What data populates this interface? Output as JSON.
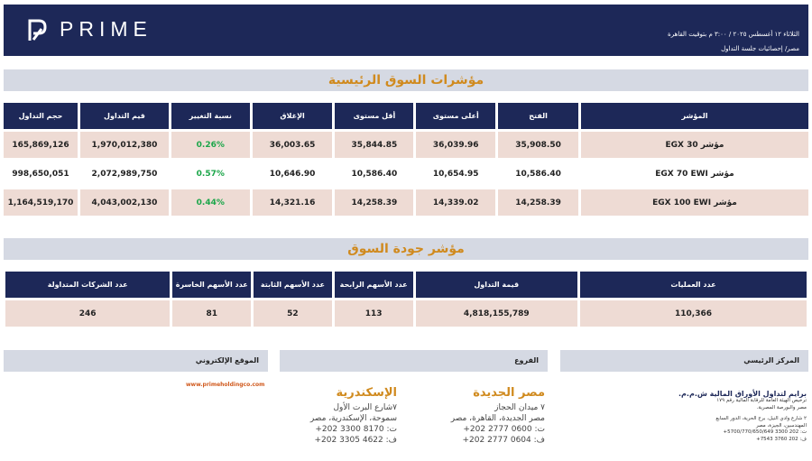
{
  "header": {
    "brand": "PRIME",
    "date_line": "الثلاثاء ١٢ أغسطس ٢٠٢٥ / ٣:٠٠ م بتوقيت القاهرة",
    "subtitle": "مصر/ إحصائيات جلسة التداول"
  },
  "main_indices": {
    "title": "مؤشرات السوق الرئيسية",
    "columns": [
      "المؤشر",
      "الفتح",
      "أعلى مستوى",
      "أقل مستوى",
      "الإغلاق",
      "نسبة التغيير",
      "قيم التداول",
      "حجم التداول"
    ],
    "rows": [
      [
        "مؤشر EGX 30",
        "35,908.50",
        "36,039.96",
        "35,844.85",
        "36,003.65",
        "0.26%",
        "1,970,012,380",
        "165,869,126"
      ],
      [
        "مؤشر EGX 70 EWI",
        "10,586.40",
        "10,654.95",
        "10,586.40",
        "10,646.90",
        "0.57%",
        "2,072,989,750",
        "998,650,051"
      ],
      [
        "مؤشر EGX 100 EWI",
        "14,258.39",
        "14,339.02",
        "14,258.39",
        "14,321.16",
        "0.44%",
        "4,043,002,130",
        "1,164,519,170"
      ]
    ]
  },
  "market_quality": {
    "title": "مؤشر جودة السوق",
    "columns": [
      "عدد العمليات",
      "قيمة التداول",
      "عدد الأسهم الرابحة",
      "عدد الأسهم الثابتة",
      "عدد الأسهم الخاسرة",
      "عدد الشركات المتداولة"
    ],
    "values": [
      "110,366",
      "4,818,155,789",
      "113",
      "52",
      "81",
      "246"
    ]
  },
  "footer": {
    "hq_label": "المركز الرئيسي",
    "branches_label": "الفروع",
    "website_label": "الموقع الإلكتروني",
    "website": "www.primeholdingco.com",
    "branch_cairo": {
      "city": "مصر الجديدة",
      "lines": [
        "٧ ميدان الحجاز",
        "مصر الجديدة، القاهرة، مصر",
        "ت: 0600 2777 202+",
        "ف: 0604 2777 202+"
      ]
    },
    "branch_alex": {
      "city": "الإسكندرية",
      "lines": [
        "٧شارع البرت الأول",
        "سموحة، الإسكندرية، مصر",
        "ت: 8170 3300 202+",
        "ف: 4622 3305 202+"
      ]
    },
    "hq": {
      "company": "برايم لتداول الأوراق المالية ش.م.م.",
      "license": "ترخيص الهيئة العامة للرقابة المالية رقم ١٧٩",
      "exchange": "مصر والبورصة المصرية.",
      "address1": "٢ شارع وادي النيل، برج الحرية، الدور السابع",
      "address2": "المهندسين، الجيزة، مصر",
      "phone": "ت: 202 3300 5700/770/650/649+",
      "fax": "ف: 202 3760 7543+"
    }
  },
  "colors": {
    "navy": "#1d2858",
    "orange": "#d08a1e",
    "shade": "#eedbd4",
    "bar": "#d5d9e3",
    "positive": "#1ca64a"
  }
}
